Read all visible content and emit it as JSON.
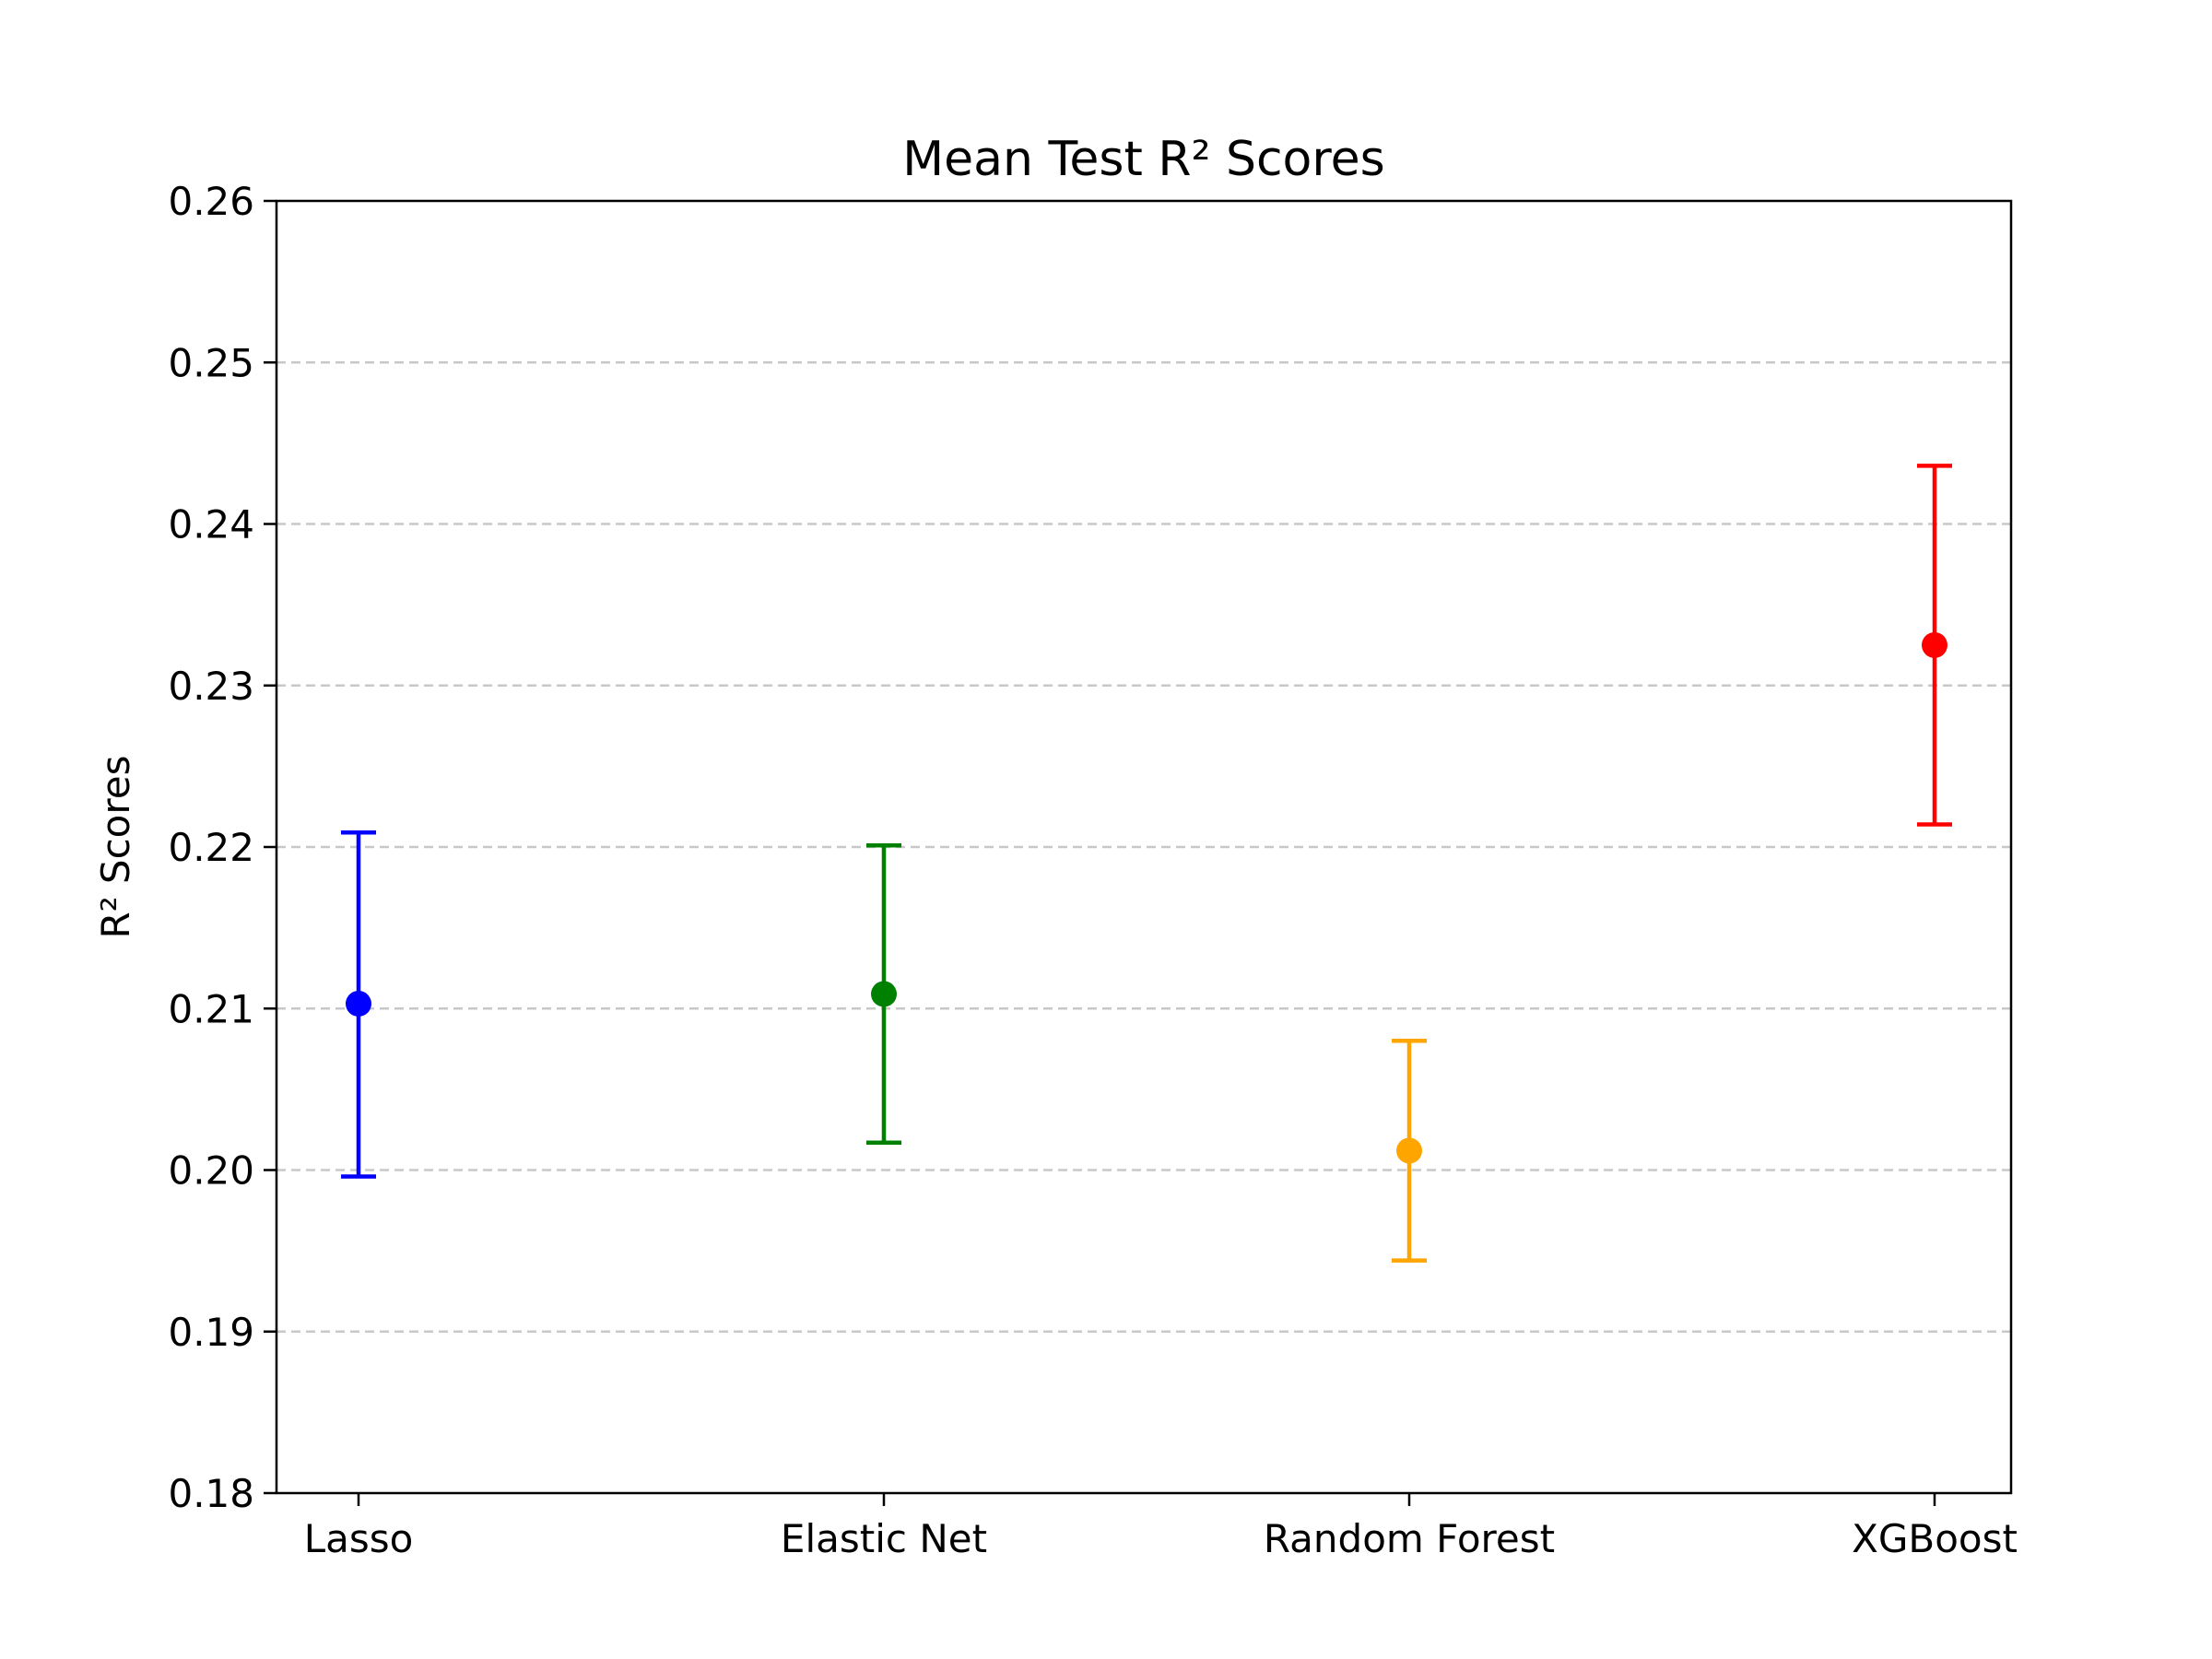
{
  "chart_data": {
    "type": "scatter",
    "title": "Mean Test R² Scores",
    "xlabel": "",
    "ylabel": "R² Scores",
    "categories": [
      "Lasso",
      "Elastic Net",
      "Random Forest",
      "XGBoost"
    ],
    "values": [
      0.2103,
      0.2109,
      0.2012,
      0.2325
    ],
    "error_low": [
      0.1996,
      0.2017,
      0.1944,
      0.2214
    ],
    "error_high": [
      0.2209,
      0.2201,
      0.208,
      0.2436
    ],
    "colors": [
      "#0000ff",
      "#008000",
      "#ffa500",
      "#ff0000"
    ],
    "ylim": [
      0.18,
      0.26
    ],
    "yticks": [
      "0.18",
      "0.19",
      "0.20",
      "0.21",
      "0.22",
      "0.23",
      "0.24",
      "0.25",
      "0.26"
    ],
    "grid": "y-dashed",
    "legend": "none"
  }
}
